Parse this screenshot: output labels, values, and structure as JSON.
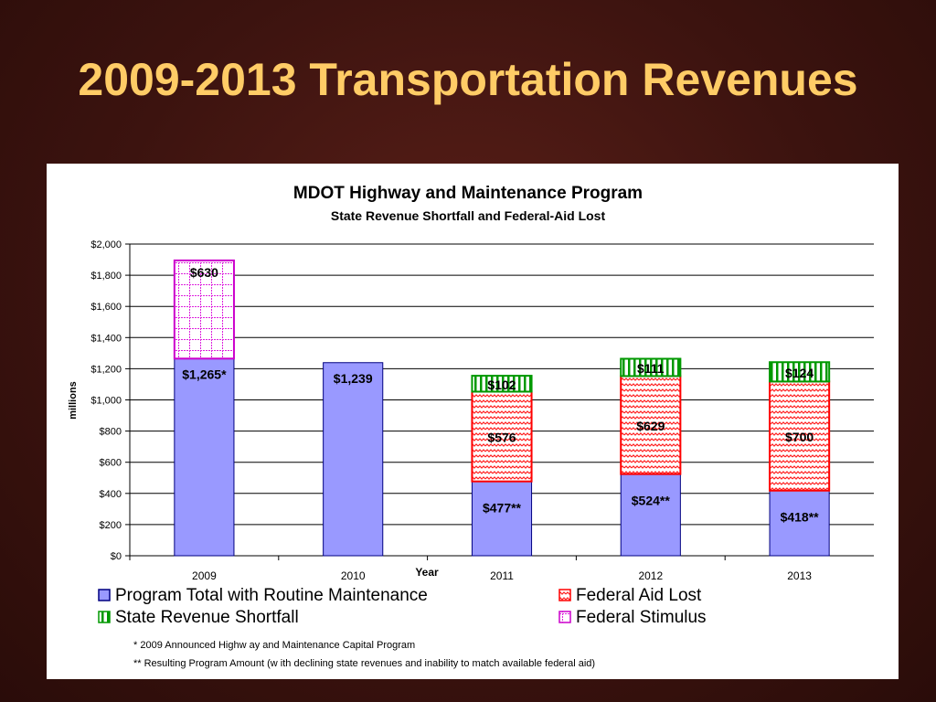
{
  "slide": {
    "title": "2009-2013 Transportation Revenues"
  },
  "chart_data": {
    "type": "bar",
    "stacked": true,
    "title": "MDOT Highway and Maintenance Program",
    "subtitle": "State Revenue Shortfall and Federal-Aid Lost",
    "xlabel": "Year",
    "ylabel": "millions",
    "ylim": [
      0,
      2000
    ],
    "yticks": [
      0,
      200,
      400,
      600,
      800,
      1000,
      1200,
      1400,
      1600,
      1800,
      2000
    ],
    "ytick_labels": [
      "$0",
      "$200",
      "$400",
      "$600",
      "$800",
      "$1,000",
      "$1,200",
      "$1,400",
      "$1,600",
      "$1,800",
      "$2,000"
    ],
    "grid": true,
    "legend_position": "bottom",
    "categories": [
      "2009",
      "2010",
      "2011",
      "2012",
      "2013"
    ],
    "series": [
      {
        "name": "Program Total with Routine Maintenance",
        "values": [
          1265,
          1239,
          477,
          524,
          418
        ],
        "labels": [
          "$1,265*",
          "$1,239",
          "$477**",
          "$524**",
          "$418**"
        ],
        "color": "#9999ff",
        "pattern": "solid"
      },
      {
        "name": "Federal Aid Lost",
        "values": [
          0,
          0,
          576,
          629,
          700
        ],
        "labels": [
          "",
          "",
          "$576",
          "$629",
          "$700"
        ],
        "color": "#ff0000",
        "pattern": "zigzag"
      },
      {
        "name": "State Revenue Shortfall",
        "values": [
          0,
          0,
          102,
          111,
          124
        ],
        "labels": [
          "",
          "",
          "$102",
          "$111",
          "$124"
        ],
        "color": "#009900",
        "pattern": "vertical-stripes"
      },
      {
        "name": "Federal Stimulus",
        "values": [
          630,
          0,
          0,
          0,
          0
        ],
        "labels": [
          "$630",
          "",
          "",
          "",
          ""
        ],
        "color": "#cc00cc",
        "pattern": "grid"
      }
    ],
    "footnotes": [
      "*  2009 Announced Highw ay and Maintenance Capital Program",
      "** Resulting Program Amount (w ith declining state revenues and inability to match available federal aid)"
    ]
  }
}
